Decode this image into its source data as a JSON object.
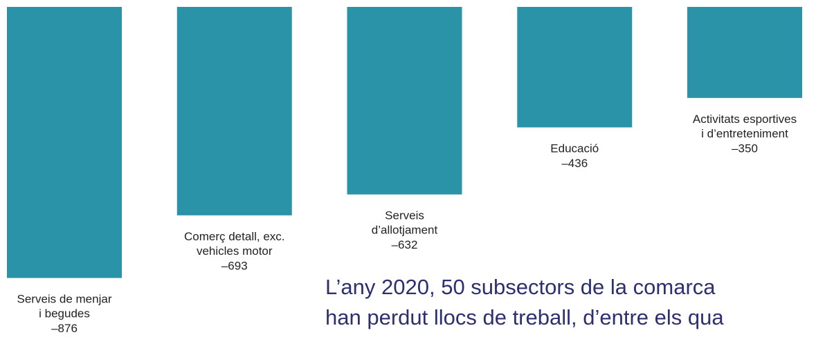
{
  "chart_data": {
    "type": "bar",
    "categories": [
      "Serveis de menjar\ni begudes",
      "Comerç detall, exc.\nvehicles motor",
      "Serveis\nd’allotjament",
      "Educació",
      "Activitats esportives\ni d’entreteniment"
    ],
    "values": [
      -876,
      -693,
      -632,
      -436,
      -350
    ],
    "value_labels": [
      "–876",
      "–693",
      "–632",
      "–436",
      "–350"
    ],
    "color": "#2a93a8",
    "ylim": [
      -1000,
      -84
    ],
    "annotation": [
      "L’any 2020, 50 subsectors de la comarca",
      "han perdut llocs de treball, d’entre els qua"
    ]
  }
}
